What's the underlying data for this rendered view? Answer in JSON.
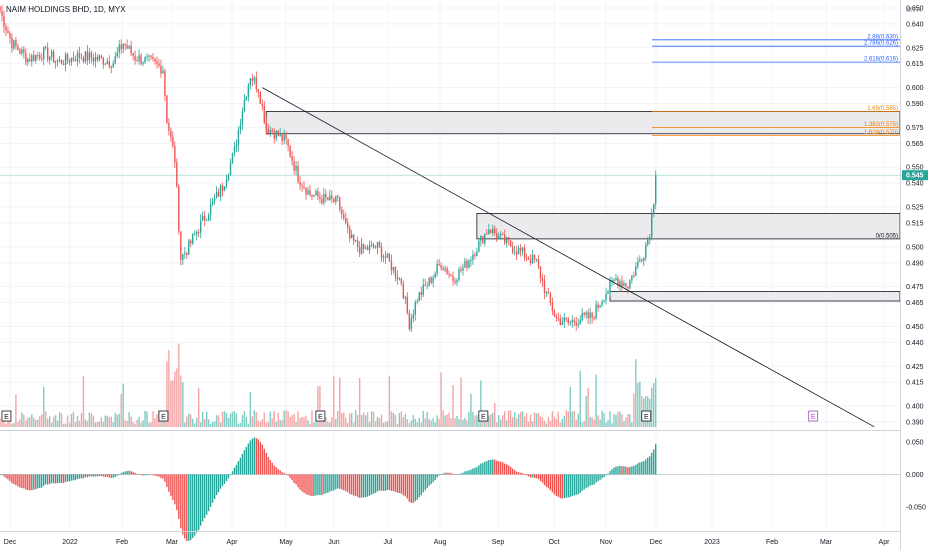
{
  "header": {
    "symbol_title": "NAIM HOLDINGS BHD, 1D, MYX",
    "currency": "MYR"
  },
  "colors": {
    "up": "#26a69a",
    "down": "#ef5350",
    "vol_up": "#80cbc4",
    "vol_down": "#f4a5a4",
    "fib_blue": "#2962ff",
    "fib_orange": "#f57c00",
    "last_price_bg": "#26a69a",
    "grid": "#f0f3fa"
  },
  "chart_data": {
    "type": "candlestick",
    "x_axis_labels": [
      "Dec",
      "2022",
      "Feb",
      "Mar",
      "Apr",
      "May",
      "Jun",
      "Jul",
      "Aug",
      "Sep",
      "Oct",
      "Nov",
      "Dec",
      "2023",
      "Feb",
      "Mar",
      "Apr"
    ],
    "price_axis": {
      "ylim": [
        0.385,
        0.655
      ],
      "ticks": [
        "0.650",
        "0.640",
        "0.625",
        "0.615",
        "0.600",
        "0.590",
        "0.575",
        "0.565",
        "0.550",
        "0.540",
        "0.525",
        "0.515",
        "0.500",
        "0.490",
        "0.475",
        "0.465",
        "0.450",
        "0.440",
        "0.425",
        "0.415",
        "0.400",
        "0.390"
      ]
    },
    "last_price": "0.545",
    "fibonacci_levels": [
      {
        "label": "2.88(0.630)",
        "value": 0.63,
        "color": "blue"
      },
      {
        "label": "2.786(0.626)",
        "value": 0.626,
        "color": "blue"
      },
      {
        "label": "2.618(0.616)",
        "value": 0.616,
        "color": "blue"
      },
      {
        "label": "1.65(0.585)",
        "value": 0.585,
        "color": "orange"
      },
      {
        "label": "1.382(0.575)",
        "value": 0.575,
        "color": "orange"
      },
      {
        "label": "1.618(0.570)",
        "value": 0.57,
        "color": "orange"
      },
      {
        "label": "0(0.505)",
        "value": 0.505,
        "color": "gray"
      }
    ],
    "zones": [
      {
        "name": "resistance-zone-upper",
        "from_index": 134,
        "top": 0.585,
        "bottom": 0.571
      },
      {
        "name": "zone-mid",
        "from_index": 240,
        "top": 0.521,
        "bottom": 0.505
      },
      {
        "name": "zone-lower",
        "from_index": 307,
        "top": 0.472,
        "bottom": 0.466
      }
    ],
    "trendline": {
      "start": {
        "index": 132,
        "price": 0.6
      },
      "end": {
        "index": 440,
        "price": 0.387
      }
    },
    "earnings_markers": [
      3,
      82,
      161,
      243,
      325
    ],
    "earnings_future_index": 409,
    "earnings_label": "E",
    "oscillator": {
      "ylim": [
        -0.085,
        0.065
      ],
      "ticks": [
        "0.050",
        "0.000",
        "-0.050"
      ]
    },
    "anchors": [
      {
        "i": 0,
        "p": 0.648
      },
      {
        "i": 6,
        "p": 0.628
      },
      {
        "i": 14,
        "p": 0.618
      },
      {
        "i": 22,
        "p": 0.622
      },
      {
        "i": 30,
        "p": 0.616
      },
      {
        "i": 40,
        "p": 0.62
      },
      {
        "i": 50,
        "p": 0.618
      },
      {
        "i": 57,
        "p": 0.616
      },
      {
        "i": 62,
        "p": 0.628
      },
      {
        "i": 68,
        "p": 0.619
      },
      {
        "i": 74,
        "p": 0.617
      },
      {
        "i": 82,
        "p": 0.612
      },
      {
        "i": 84,
        "p": 0.58
      },
      {
        "i": 88,
        "p": 0.555
      },
      {
        "i": 91,
        "p": 0.493
      },
      {
        "i": 95,
        "p": 0.5
      },
      {
        "i": 100,
        "p": 0.512
      },
      {
        "i": 106,
        "p": 0.525
      },
      {
        "i": 112,
        "p": 0.538
      },
      {
        "i": 118,
        "p": 0.56
      },
      {
        "i": 122,
        "p": 0.587
      },
      {
        "i": 126,
        "p": 0.608
      },
      {
        "i": 130,
        "p": 0.6
      },
      {
        "i": 134,
        "p": 0.575
      },
      {
        "i": 138,
        "p": 0.572
      },
      {
        "i": 144,
        "p": 0.566
      },
      {
        "i": 150,
        "p": 0.544
      },
      {
        "i": 156,
        "p": 0.533
      },
      {
        "i": 163,
        "p": 0.53
      },
      {
        "i": 170,
        "p": 0.528
      },
      {
        "i": 176,
        "p": 0.505
      },
      {
        "i": 182,
        "p": 0.498
      },
      {
        "i": 190,
        "p": 0.5
      },
      {
        "i": 196,
        "p": 0.49
      },
      {
        "i": 202,
        "p": 0.478
      },
      {
        "i": 206,
        "p": 0.452
      },
      {
        "i": 210,
        "p": 0.468
      },
      {
        "i": 216,
        "p": 0.478
      },
      {
        "i": 222,
        "p": 0.49
      },
      {
        "i": 228,
        "p": 0.48
      },
      {
        "i": 234,
        "p": 0.488
      },
      {
        "i": 240,
        "p": 0.5
      },
      {
        "i": 246,
        "p": 0.512
      },
      {
        "i": 252,
        "p": 0.505
      },
      {
        "i": 258,
        "p": 0.5
      },
      {
        "i": 264,
        "p": 0.495
      },
      {
        "i": 270,
        "p": 0.49
      },
      {
        "i": 275,
        "p": 0.47
      },
      {
        "i": 280,
        "p": 0.455
      },
      {
        "i": 286,
        "p": 0.452
      },
      {
        "i": 292,
        "p": 0.455
      },
      {
        "i": 298,
        "p": 0.456
      },
      {
        "i": 304,
        "p": 0.47
      },
      {
        "i": 310,
        "p": 0.48
      },
      {
        "i": 316,
        "p": 0.476
      },
      {
        "i": 320,
        "p": 0.487
      },
      {
        "i": 324,
        "p": 0.497
      },
      {
        "i": 327,
        "p": 0.51
      },
      {
        "i": 329,
        "p": 0.53
      },
      {
        "i": 330,
        "p": 0.545
      }
    ]
  }
}
